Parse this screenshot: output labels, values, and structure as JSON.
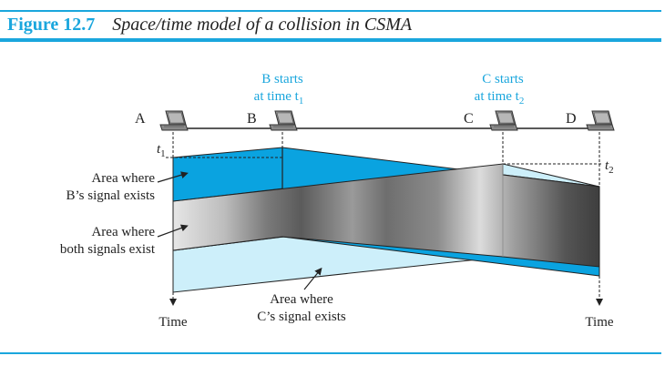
{
  "figure": {
    "number": "Figure 12.7",
    "title": "Space/time model of a collision in CSMA"
  },
  "stations": [
    {
      "label": "A"
    },
    {
      "label": "B"
    },
    {
      "label": "C"
    },
    {
      "label": "D"
    }
  ],
  "events": {
    "b_starts": {
      "line1": "B starts",
      "line2": "at time t",
      "sub": "1"
    },
    "c_starts": {
      "line1": "C starts",
      "line2": "at time t",
      "sub": "2"
    }
  },
  "time_marks": {
    "t1": {
      "base": "t",
      "sub": "1"
    },
    "t2": {
      "base": "t",
      "sub": "2"
    }
  },
  "annotations": {
    "b_area": {
      "line1": "Area where",
      "line2": "B’s signal exists"
    },
    "both_area": {
      "line1": "Area where",
      "line2": "both signals exist"
    },
    "c_area": {
      "line1": "Area where",
      "line2": "C’s signal exists"
    }
  },
  "axis": {
    "time_left": "Time",
    "time_right": "Time"
  },
  "colors": {
    "accent": "#1aa6dd",
    "b_signal": "#0aa3e0",
    "c_signal": "#cdeffa",
    "overlap_dark": "#4a4a4a",
    "overlap_light": "#d8d8d8"
  }
}
